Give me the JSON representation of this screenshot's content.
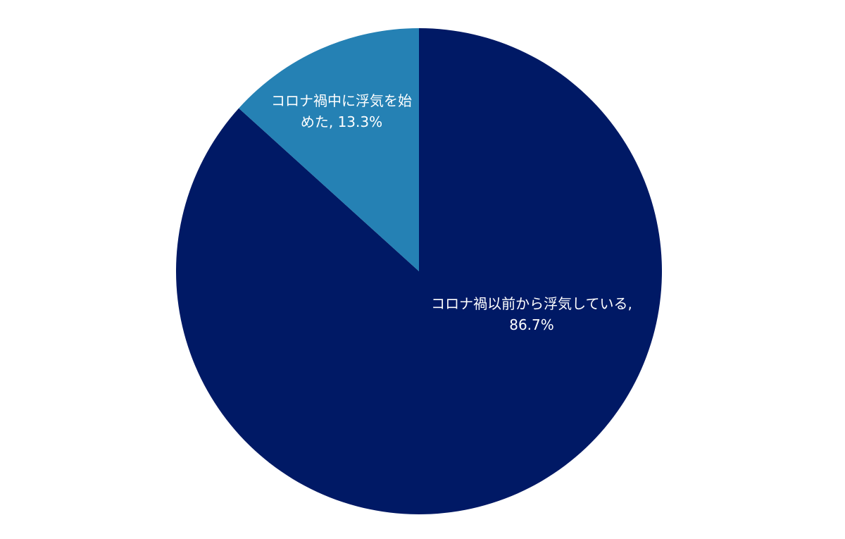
{
  "chart_data": {
    "type": "pie",
    "categories": [
      "コロナ禍以前から浮気している",
      "コロナ禍中に浮気を始めた"
    ],
    "values": [
      86.7,
      13.3
    ],
    "value_labels": [
      "86.7%",
      "13.3%"
    ],
    "colors": [
      "#001965",
      "#2581b4"
    ]
  }
}
